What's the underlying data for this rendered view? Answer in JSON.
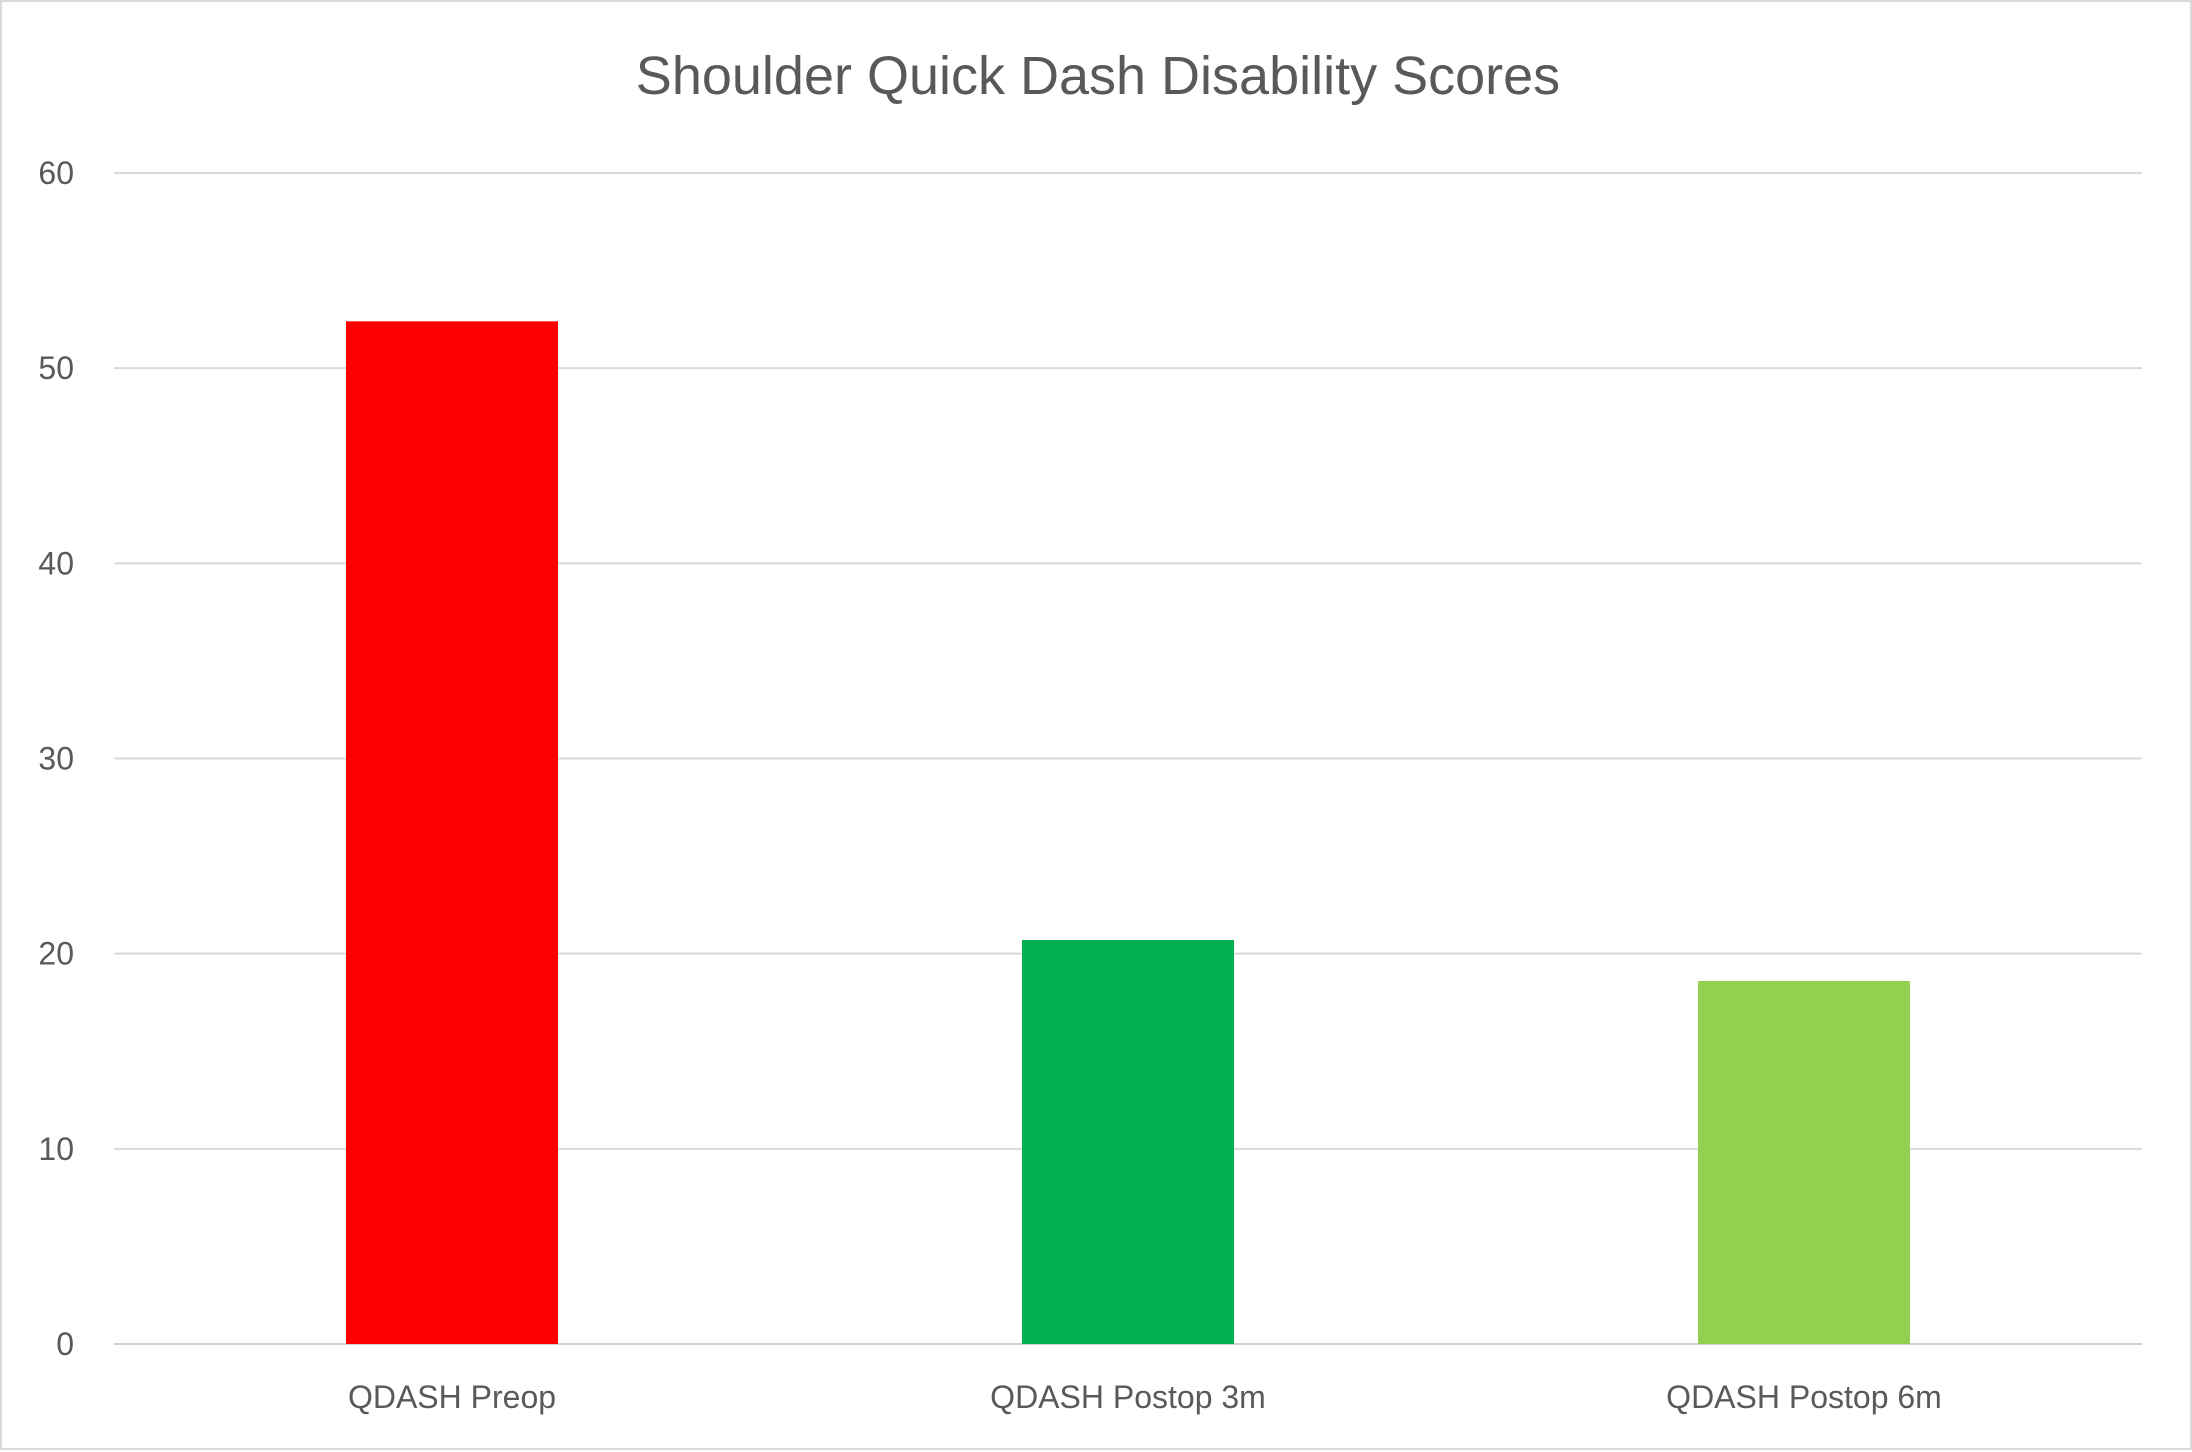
{
  "chart_data": {
    "type": "bar",
    "title": "Shoulder Quick Dash Disability Scores",
    "xlabel": "",
    "ylabel": "",
    "categories": [
      "QDASH Preop",
      "QDASH Postop 3m",
      "QDASH Postop 6m"
    ],
    "values": [
      52.4,
      20.7,
      18.6
    ],
    "colors": [
      "#ff0000",
      "#00b050",
      "#92d050"
    ],
    "ylim": [
      0,
      60
    ],
    "yticks": [
      "0",
      "10",
      "20",
      "30",
      "40",
      "50",
      "60"
    ],
    "grid": true,
    "legend": "none"
  }
}
